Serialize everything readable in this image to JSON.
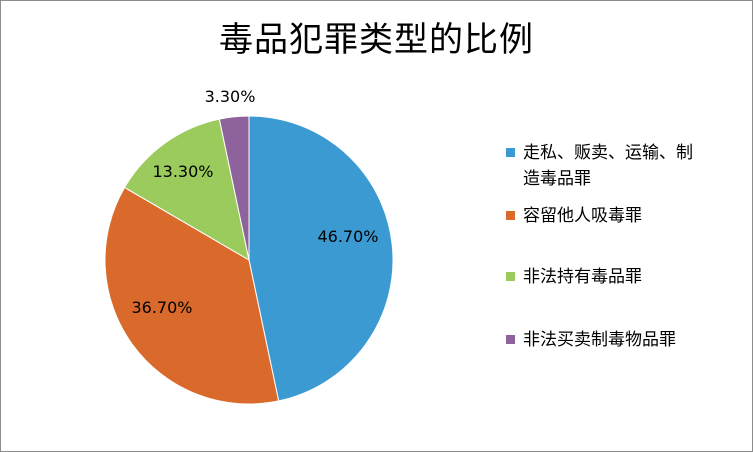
{
  "chart_data": {
    "type": "pie",
    "title": "毒品犯罪类型的比例",
    "start_angle_deg": 0,
    "direction": "clockwise",
    "legend_position": "right",
    "slices": [
      {
        "label": "走私、贩卖、运输、制造毒品罪",
        "value": 46.7,
        "display": "46.70%",
        "color": "#3c9ad3"
      },
      {
        "label": "容留他人吸毒罪",
        "value": 36.7,
        "display": "36.70%",
        "color": "#d96a2b"
      },
      {
        "label": "非法持有毒品罪",
        "value": 13.3,
        "display": "13.30%",
        "color": "#9bcb5d"
      },
      {
        "label": "非法买卖制毒物品罪",
        "value": 3.3,
        "display": "3.30%",
        "color": "#8e629b"
      }
    ]
  },
  "legend": {
    "items": [
      {
        "line1": "走私、贩卖、运输、制",
        "line2": "造毒品罪"
      },
      {
        "line1": "容留他人吸毒罪",
        "line2": ""
      },
      {
        "line1": "非法持有毒品罪",
        "line2": ""
      },
      {
        "line1": "非法买卖制毒物品罪",
        "line2": ""
      }
    ]
  }
}
